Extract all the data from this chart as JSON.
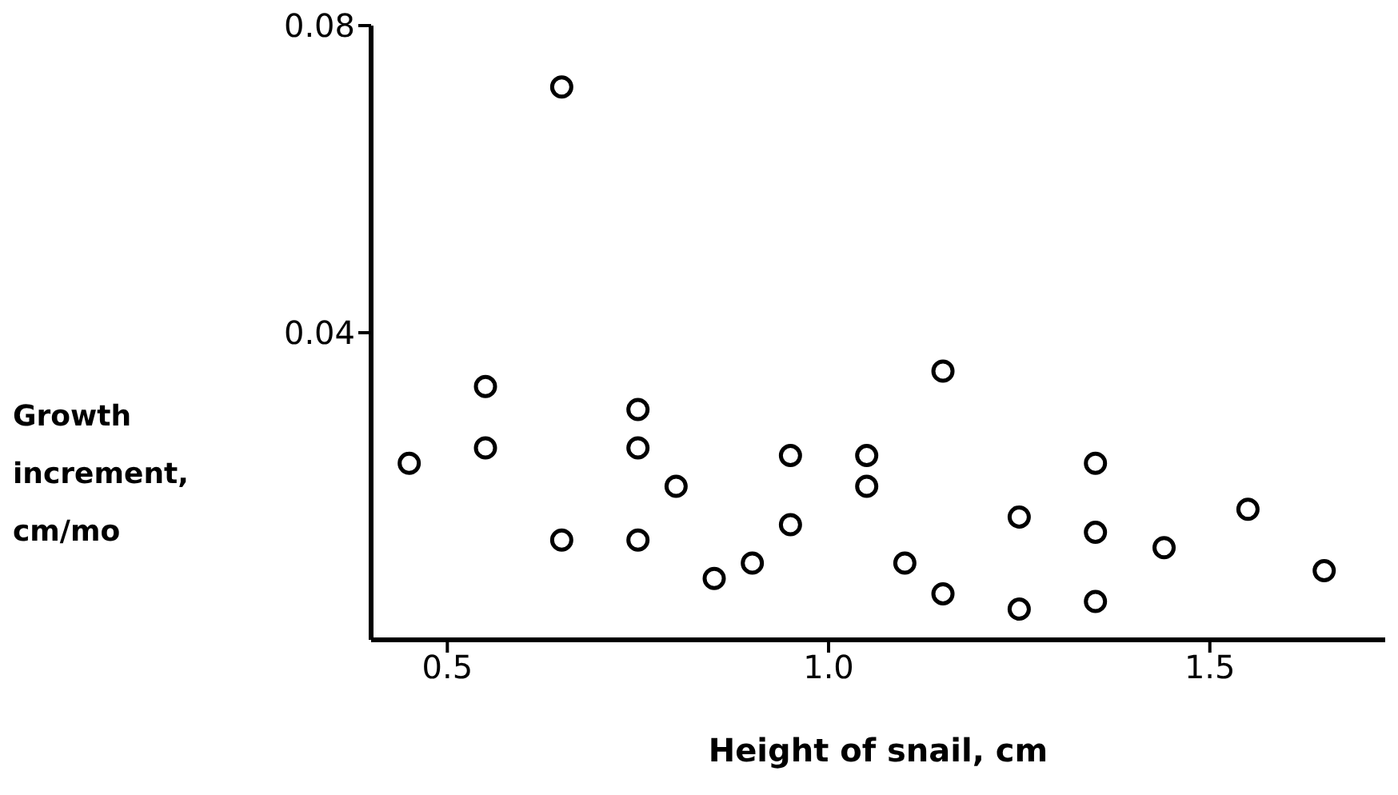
{
  "chart_data": {
    "type": "scatter",
    "xlabel": "Height of snail, cm",
    "ylabel": "Growth increment, cm/mo",
    "xlim": [
      0.4,
      1.73
    ],
    "xticks": [
      0.5,
      {
        "value": 1,
        "label": "1.0"
      },
      1.5
    ],
    "ylim": [
      0,
      0.08
    ],
    "yticks": [
      0.04,
      0.08
    ],
    "grid": false,
    "legend": false,
    "marker": "circle",
    "series": [
      {
        "color": "#000000",
        "x": [
          0.45,
          0.55,
          0.55,
          0.65,
          0.65,
          0.75,
          0.75,
          0.75,
          0.8,
          0.85,
          0.9,
          0.95,
          0.95,
          1.05,
          1.05,
          1.1,
          1.15,
          1.15,
          1.25,
          1.25,
          1.35,
          1.35,
          1.35,
          1.44,
          1.55,
          1.65
        ],
        "values": [
          0.023,
          0.033,
          0.025,
          0.072,
          0.013,
          0.03,
          0.025,
          0.013,
          0.02,
          0.008,
          0.01,
          0.024,
          0.015,
          0.024,
          0.02,
          0.01,
          0.035,
          0.006,
          0.016,
          0.004,
          0.023,
          0.014,
          0.005,
          0.012,
          0.017,
          0.009
        ]
      }
    ]
  }
}
